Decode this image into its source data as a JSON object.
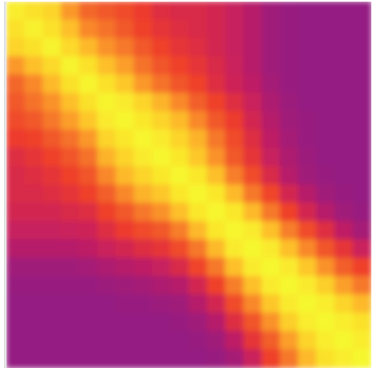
{
  "chart_data": {
    "type": "heatmap",
    "title": "",
    "xlabel": "",
    "ylabel": "",
    "rows": 20,
    "cols": 20,
    "value_range": [
      0,
      1
    ],
    "colormap": [
      "#8b1a88",
      "#c8205e",
      "#ef3b2c",
      "#f2612a",
      "#fa8f2a",
      "#fdbe2c",
      "#fbe32c",
      "#f6f92e"
    ],
    "matrix": [
      [
        0.92,
        0.85,
        0.8,
        0.6,
        0.45,
        0.4,
        0.35,
        0.28,
        0.22,
        0.2,
        0.2,
        0.18,
        0.14,
        0.1,
        0.05,
        0.03,
        0.02,
        0.02,
        0.02,
        0.02
      ],
      [
        0.85,
        0.95,
        0.85,
        0.72,
        0.55,
        0.48,
        0.4,
        0.3,
        0.25,
        0.22,
        0.2,
        0.18,
        0.14,
        0.1,
        0.05,
        0.03,
        0.02,
        0.02,
        0.02,
        0.02
      ],
      [
        0.8,
        0.85,
        0.96,
        0.82,
        0.7,
        0.58,
        0.5,
        0.4,
        0.3,
        0.25,
        0.22,
        0.18,
        0.14,
        0.1,
        0.05,
        0.03,
        0.02,
        0.02,
        0.02,
        0.02
      ],
      [
        0.6,
        0.72,
        0.82,
        0.96,
        0.85,
        0.72,
        0.62,
        0.48,
        0.38,
        0.3,
        0.25,
        0.2,
        0.15,
        0.1,
        0.05,
        0.03,
        0.02,
        0.02,
        0.02,
        0.02
      ],
      [
        0.45,
        0.55,
        0.7,
        0.85,
        0.97,
        0.85,
        0.75,
        0.6,
        0.48,
        0.38,
        0.3,
        0.22,
        0.16,
        0.12,
        0.06,
        0.03,
        0.02,
        0.02,
        0.02,
        0.02
      ],
      [
        0.4,
        0.48,
        0.58,
        0.72,
        0.85,
        0.97,
        0.9,
        0.8,
        0.68,
        0.55,
        0.42,
        0.3,
        0.22,
        0.15,
        0.08,
        0.04,
        0.02,
        0.02,
        0.02,
        0.02
      ],
      [
        0.35,
        0.4,
        0.5,
        0.62,
        0.75,
        0.9,
        0.98,
        0.88,
        0.8,
        0.7,
        0.55,
        0.4,
        0.28,
        0.18,
        0.1,
        0.05,
        0.03,
        0.02,
        0.02,
        0.02
      ],
      [
        0.28,
        0.3,
        0.4,
        0.48,
        0.6,
        0.8,
        0.88,
        0.98,
        0.9,
        0.8,
        0.68,
        0.5,
        0.35,
        0.22,
        0.12,
        0.06,
        0.03,
        0.02,
        0.02,
        0.02
      ],
      [
        0.22,
        0.25,
        0.3,
        0.38,
        0.48,
        0.68,
        0.8,
        0.9,
        0.98,
        0.88,
        0.75,
        0.58,
        0.4,
        0.25,
        0.14,
        0.08,
        0.04,
        0.02,
        0.02,
        0.02
      ],
      [
        0.2,
        0.22,
        0.25,
        0.3,
        0.38,
        0.55,
        0.7,
        0.8,
        0.88,
        0.98,
        0.88,
        0.72,
        0.52,
        0.35,
        0.2,
        0.1,
        0.05,
        0.03,
        0.02,
        0.02
      ],
      [
        0.2,
        0.2,
        0.22,
        0.25,
        0.3,
        0.42,
        0.55,
        0.68,
        0.75,
        0.88,
        0.98,
        0.88,
        0.7,
        0.5,
        0.32,
        0.18,
        0.1,
        0.05,
        0.03,
        0.02
      ],
      [
        0.18,
        0.18,
        0.18,
        0.2,
        0.22,
        0.3,
        0.4,
        0.5,
        0.58,
        0.72,
        0.88,
        0.98,
        0.88,
        0.7,
        0.5,
        0.3,
        0.18,
        0.1,
        0.05,
        0.03
      ],
      [
        0.14,
        0.14,
        0.14,
        0.15,
        0.16,
        0.22,
        0.28,
        0.35,
        0.4,
        0.52,
        0.7,
        0.88,
        0.98,
        0.9,
        0.72,
        0.52,
        0.35,
        0.22,
        0.12,
        0.06
      ],
      [
        0.1,
        0.1,
        0.1,
        0.1,
        0.12,
        0.15,
        0.18,
        0.22,
        0.25,
        0.35,
        0.5,
        0.7,
        0.9,
        0.99,
        0.9,
        0.72,
        0.55,
        0.38,
        0.25,
        0.15
      ],
      [
        0.05,
        0.05,
        0.05,
        0.05,
        0.06,
        0.08,
        0.1,
        0.12,
        0.14,
        0.2,
        0.32,
        0.5,
        0.72,
        0.9,
        0.99,
        0.9,
        0.75,
        0.58,
        0.42,
        0.3
      ],
      [
        0.03,
        0.03,
        0.03,
        0.03,
        0.03,
        0.04,
        0.05,
        0.06,
        0.08,
        0.1,
        0.18,
        0.3,
        0.52,
        0.72,
        0.9,
        0.99,
        0.9,
        0.78,
        0.62,
        0.5
      ],
      [
        0.02,
        0.02,
        0.02,
        0.02,
        0.02,
        0.02,
        0.03,
        0.03,
        0.04,
        0.05,
        0.1,
        0.18,
        0.35,
        0.55,
        0.75,
        0.9,
        0.99,
        0.92,
        0.8,
        0.7
      ],
      [
        0.02,
        0.02,
        0.02,
        0.02,
        0.02,
        0.02,
        0.02,
        0.02,
        0.02,
        0.03,
        0.05,
        0.1,
        0.22,
        0.38,
        0.58,
        0.78,
        0.92,
        0.99,
        0.92,
        0.85
      ],
      [
        0.02,
        0.02,
        0.02,
        0.02,
        0.02,
        0.02,
        0.02,
        0.02,
        0.02,
        0.02,
        0.03,
        0.05,
        0.12,
        0.25,
        0.42,
        0.62,
        0.8,
        0.92,
        0.99,
        0.92
      ],
      [
        0.02,
        0.02,
        0.02,
        0.02,
        0.02,
        0.02,
        0.02,
        0.02,
        0.02,
        0.02,
        0.02,
        0.03,
        0.06,
        0.15,
        0.3,
        0.5,
        0.7,
        0.85,
        0.92,
        0.99
      ]
    ]
  }
}
